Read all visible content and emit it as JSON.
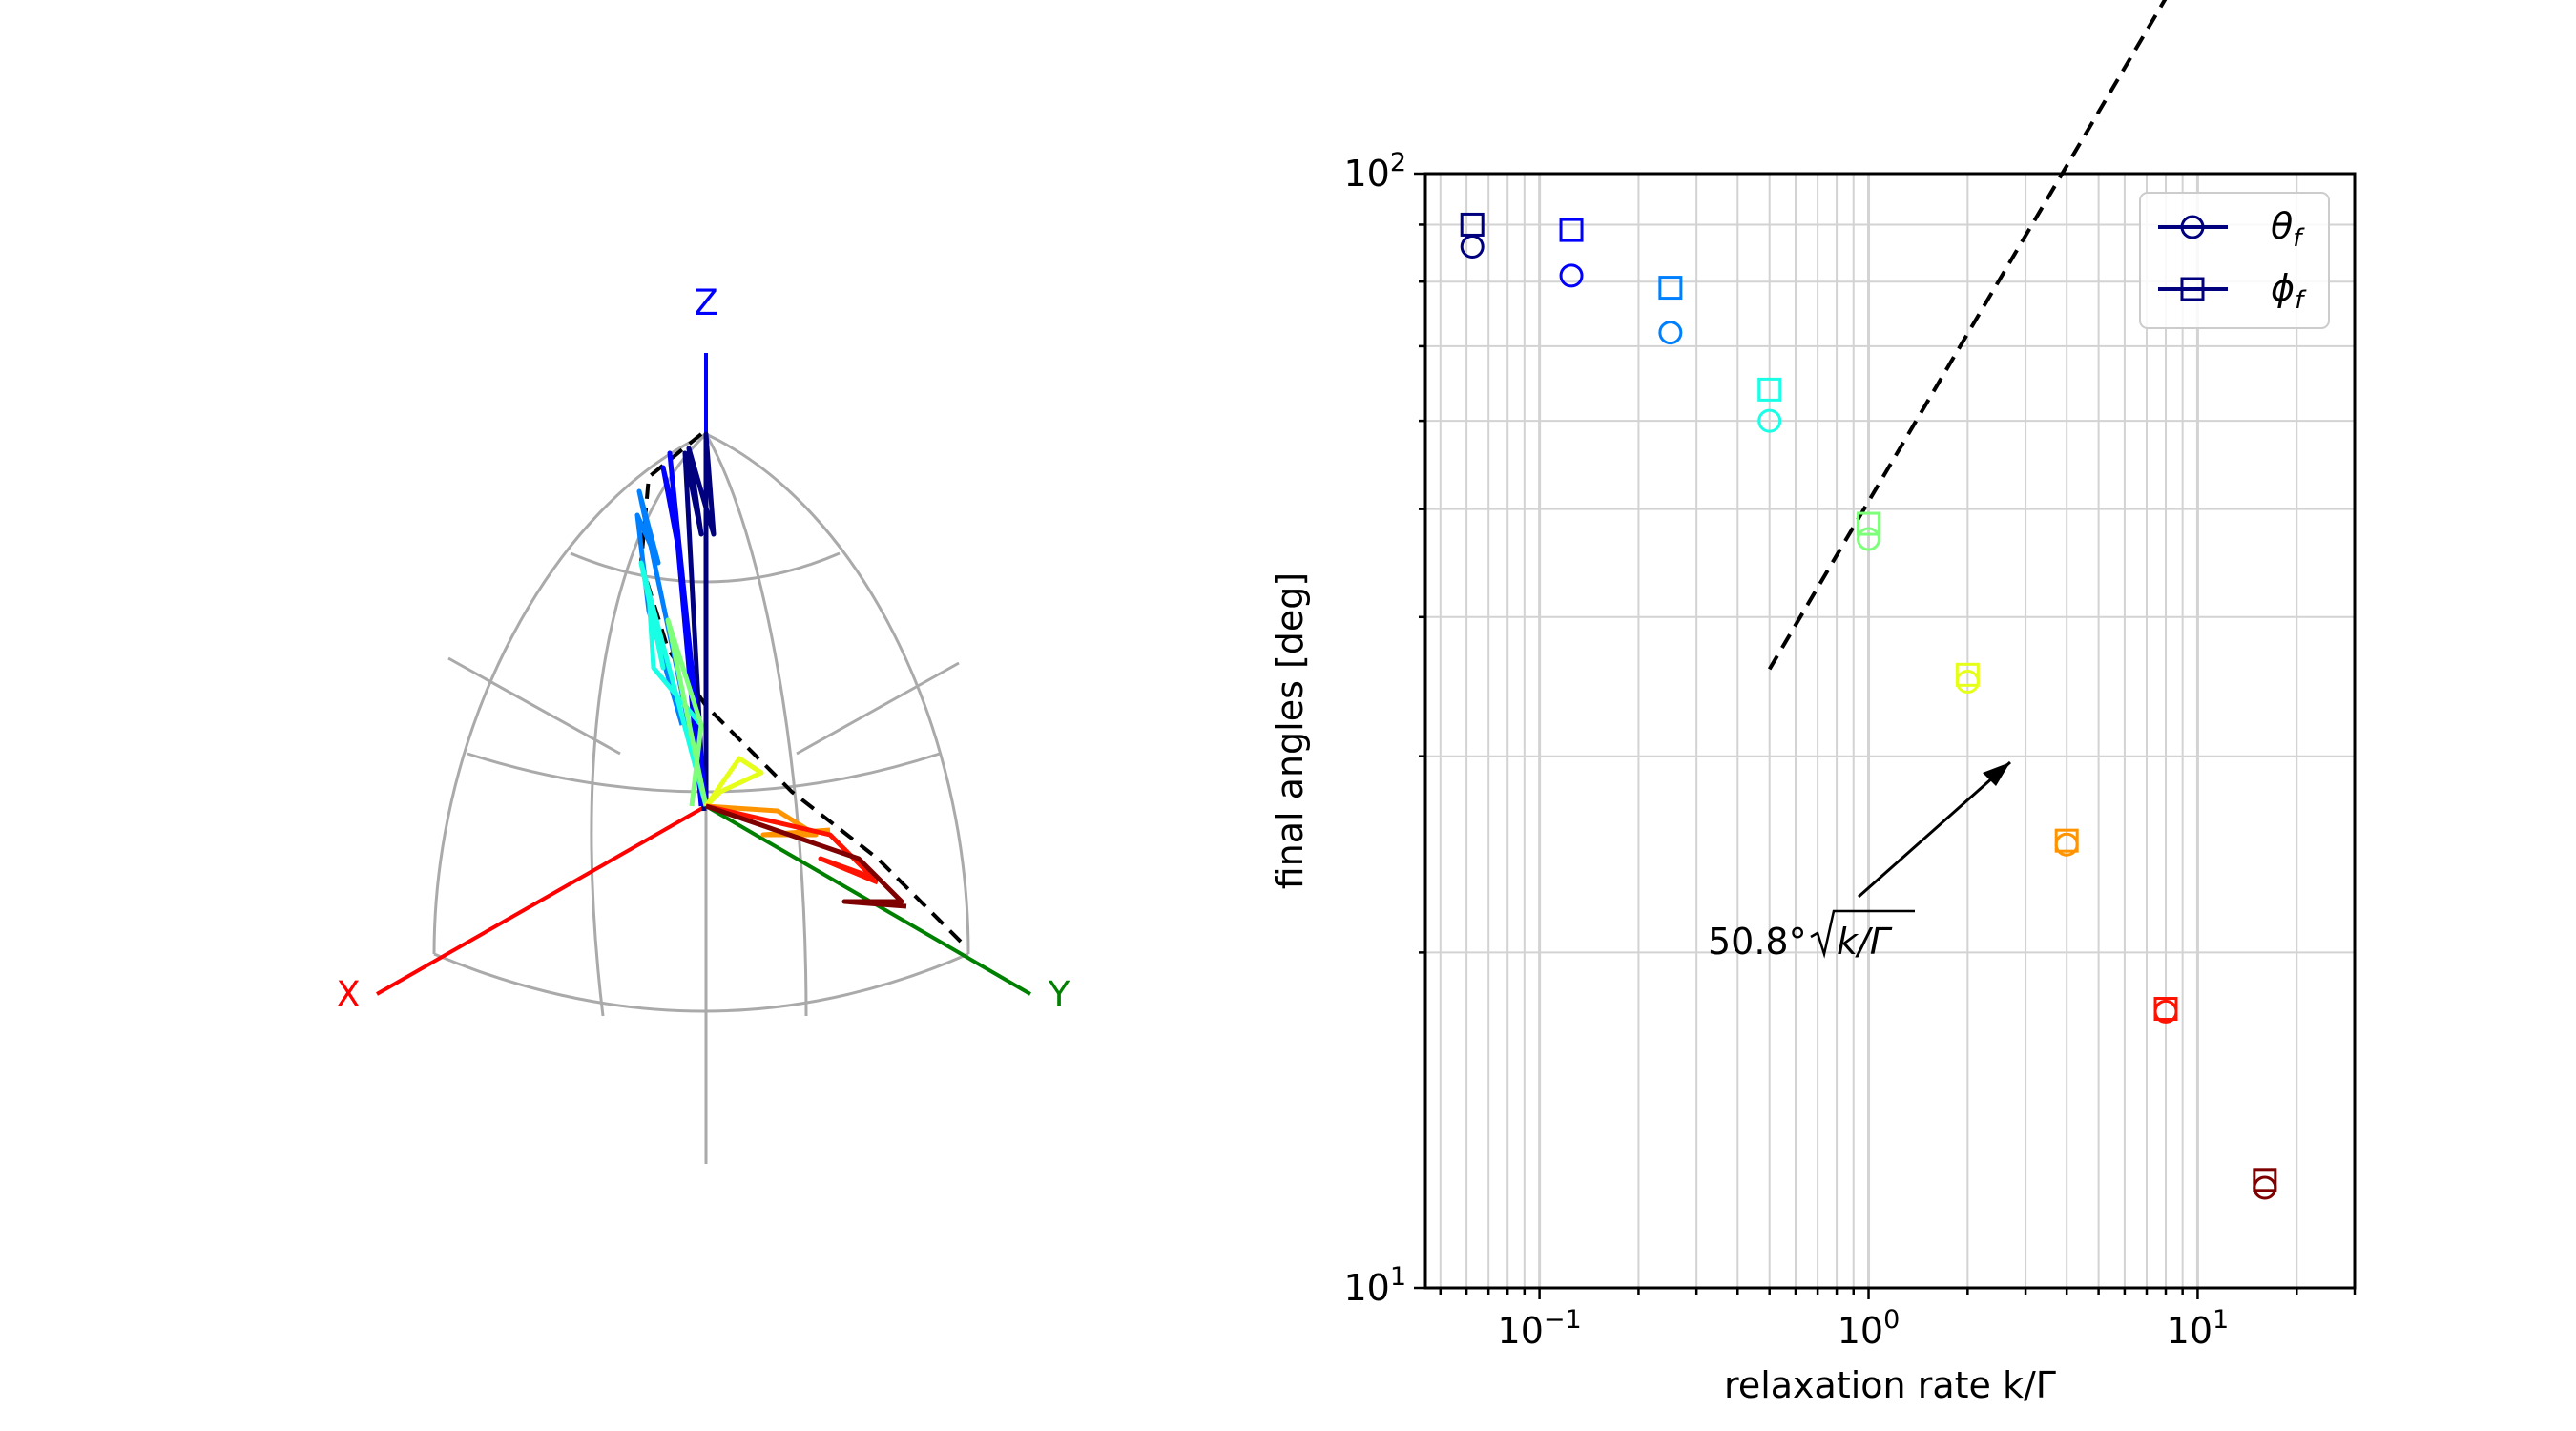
{
  "chart_data": [
    {
      "type": "line",
      "projection": "3d-sphere",
      "axes": {
        "x": {
          "label": "X",
          "color": "#ff0000"
        },
        "y": {
          "label": "Y",
          "color": "#008000"
        },
        "z": {
          "label": "Z",
          "color": "#0000ff"
        }
      },
      "grid": true,
      "grid_color": "#aaaaaa",
      "colormap": "jet",
      "series_note_visible_text": "",
      "trajectories_count": 9,
      "reference_curve_style": "dashed black"
    },
    {
      "type": "scatter",
      "xscale": "log",
      "yscale": "log",
      "xlabel": "relaxation rate k/Γ",
      "ylabel": "final angles [deg]",
      "xlim": [
        0.045,
        30
      ],
      "ylim": [
        10,
        100
      ],
      "xticks": [
        {
          "value": 0.1,
          "base": "10",
          "exp": "−1"
        },
        {
          "value": 1,
          "base": "10",
          "exp": "0"
        },
        {
          "value": 10,
          "base": "10",
          "exp": "1"
        }
      ],
      "yticks": [
        {
          "value": 10,
          "base": "10",
          "exp": "1"
        },
        {
          "value": 100,
          "base": "10",
          "exp": "2"
        }
      ],
      "grid": true,
      "legend_position": "top-right",
      "legend": [
        {
          "name": "θ",
          "subscript": "f",
          "marker": "circle",
          "color": "#00007f"
        },
        {
          "name": "ϕ",
          "subscript": "f",
          "marker": "square",
          "color": "#00007f"
        }
      ],
      "k_values": [
        0.0625,
        0.125,
        0.25,
        0.5,
        1,
        2,
        4,
        8,
        16
      ],
      "theta_f": [
        86,
        81,
        72,
        60,
        47,
        35,
        25,
        17.7,
        12.3
      ],
      "phi_f": [
        90,
        89,
        79,
        64,
        48.5,
        35.5,
        25.2,
        17.8,
        12.5
      ],
      "colors": [
        "#00007f",
        "#0000ff",
        "#007fff",
        "#19ffe5",
        "#7dff7a",
        "#e5ff19",
        "#ff9400",
        "#ff1300",
        "#7f0000"
      ],
      "fit": {
        "coefficient": 50.8,
        "x_range": [
          0.5,
          16
        ],
        "style": "dashed black",
        "annotation_prefix": "50.8°",
        "annotation_expr": "k/Γ",
        "annotation_arrow_target_x": 2.8
      }
    }
  ]
}
